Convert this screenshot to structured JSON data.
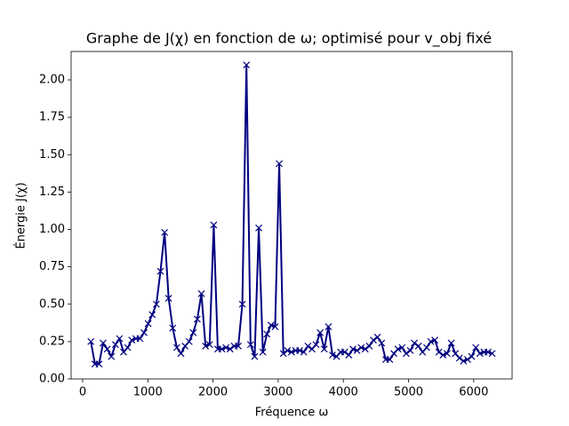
{
  "chart_data": {
    "type": "line",
    "title": "Graphe de J(χ) en fonction de ω; optimisé pour v_obj fixé",
    "x_label": "Fréquence ω",
    "y_label": "Énergie J(χ)",
    "color": "#000080",
    "marker": "x",
    "x": [
      126,
      188,
      251,
      314,
      377,
      440,
      503,
      565,
      628,
      691,
      754,
      817,
      880,
      942,
      1005,
      1068,
      1131,
      1194,
      1257,
      1319,
      1382,
      1445,
      1508,
      1571,
      1634,
      1696,
      1759,
      1822,
      1885,
      1948,
      2011,
      2073,
      2136,
      2199,
      2262,
      2325,
      2388,
      2450,
      2513,
      2576,
      2639,
      2702,
      2765,
      2827,
      2890,
      2953,
      3016,
      3079,
      3142,
      3204,
      3267,
      3330,
      3393,
      3456,
      3519,
      3581,
      3644,
      3707,
      3770,
      3833,
      3896,
      3958,
      4021,
      4084,
      4147,
      4210,
      4273,
      4335,
      4398,
      4461,
      4524,
      4587,
      4650,
      4712,
      4775,
      4838,
      4901,
      4964,
      5027,
      5089,
      5152,
      5215,
      5278,
      5341,
      5404,
      5466,
      5529,
      5592,
      5655,
      5718,
      5781,
      5843,
      5906,
      5969,
      6032,
      6095,
      6158,
      6220,
      6283
    ],
    "values": [
      0.25,
      0.1,
      0.1,
      0.24,
      0.2,
      0.15,
      0.23,
      0.27,
      0.18,
      0.21,
      0.26,
      0.27,
      0.27,
      0.31,
      0.37,
      0.43,
      0.5,
      0.72,
      0.98,
      0.54,
      0.34,
      0.21,
      0.17,
      0.22,
      0.25,
      0.31,
      0.4,
      0.57,
      0.22,
      0.23,
      1.03,
      0.2,
      0.2,
      0.21,
      0.2,
      0.22,
      0.22,
      0.5,
      2.1,
      0.23,
      0.15,
      1.01,
      0.18,
      0.3,
      0.36,
      0.35,
      1.44,
      0.17,
      0.19,
      0.18,
      0.19,
      0.19,
      0.18,
      0.22,
      0.2,
      0.23,
      0.31,
      0.2,
      0.35,
      0.16,
      0.15,
      0.18,
      0.18,
      0.16,
      0.2,
      0.19,
      0.21,
      0.2,
      0.22,
      0.26,
      0.28,
      0.24,
      0.13,
      0.13,
      0.17,
      0.2,
      0.21,
      0.17,
      0.19,
      0.24,
      0.22,
      0.18,
      0.21,
      0.25,
      0.26,
      0.18,
      0.16,
      0.17,
      0.24,
      0.17,
      0.14,
      0.12,
      0.13,
      0.15,
      0.21,
      0.17,
      0.18,
      0.18,
      0.17
    ],
    "xlim": [
      -177,
      6589
    ],
    "ylim": [
      0,
      2.19
    ],
    "xticks": [
      0,
      1000,
      2000,
      3000,
      4000,
      5000,
      6000
    ],
    "yticks": [
      {
        "value": 0,
        "label": "0.00"
      },
      {
        "value": 0.25,
        "label": "0.25"
      },
      {
        "value": 0.5,
        "label": "0.50"
      },
      {
        "value": 0.75,
        "label": "0.75"
      },
      {
        "value": 1,
        "label": "1.00"
      },
      {
        "value": 1.25,
        "label": "1.25"
      },
      {
        "value": 1.5,
        "label": "1.50"
      },
      {
        "value": 1.75,
        "label": "1.75"
      },
      {
        "value": 2,
        "label": "2.00"
      }
    ],
    "grid": false
  }
}
